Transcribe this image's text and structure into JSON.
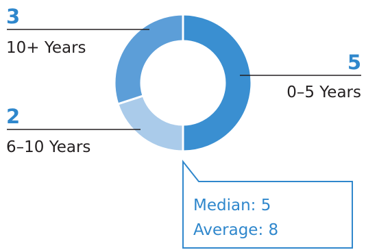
{
  "chart_data": {
    "type": "pie",
    "categories": [
      "0–5 Years",
      "6–10 Years",
      "10+ Years"
    ],
    "values": [
      5,
      2,
      3
    ],
    "counts": [
      "5",
      "2",
      "3"
    ],
    "colors": [
      "#3a8fd1",
      "#aacbea",
      "#5c9ed8"
    ],
    "accent_color": "#2f87cc",
    "start_angle_deg": 0,
    "direction": "clockwise"
  },
  "callout": {
    "median": "Median: 5",
    "average": "Average: 8"
  }
}
